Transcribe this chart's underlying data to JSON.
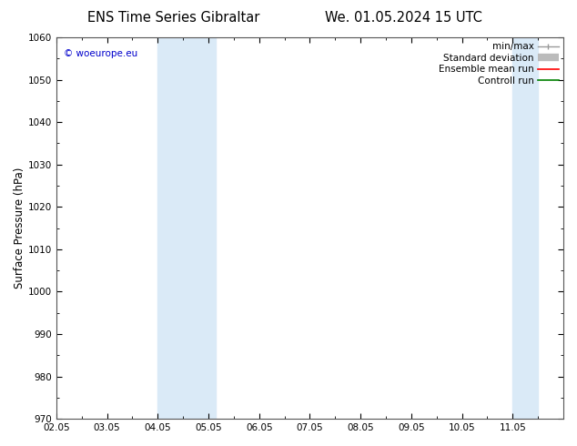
{
  "title_left": "ENS Time Series Gibraltar",
  "title_right": "We. 01.05.2024 15 UTC",
  "ylabel": "Surface Pressure (hPa)",
  "ylim": [
    970,
    1060
  ],
  "yticks": [
    970,
    980,
    990,
    1000,
    1010,
    1020,
    1030,
    1040,
    1050,
    1060
  ],
  "xlim": [
    0,
    10
  ],
  "xtick_labels": [
    "02.05",
    "03.05",
    "04.05",
    "05.05",
    "06.05",
    "07.05",
    "08.05",
    "09.05",
    "10.05",
    "11.05"
  ],
  "xtick_positions": [
    0,
    1,
    2,
    3,
    4,
    5,
    6,
    7,
    8,
    9
  ],
  "shaded_bands": [
    {
      "xmin": 2.0,
      "xmax": 3.0,
      "color": "#daeaf7"
    },
    {
      "xmin": 3.0,
      "xmax": 3.15,
      "color": "#daeaf7"
    },
    {
      "xmin": 9.0,
      "xmax": 9.15,
      "color": "#daeaf7"
    },
    {
      "xmin": 9.15,
      "xmax": 9.45,
      "color": "#daeaf7"
    }
  ],
  "copyright_text": "© woeurope.eu",
  "copyright_color": "#0000cc",
  "legend_entries": [
    {
      "label": "min/max",
      "color": "#999999",
      "lw": 1.0
    },
    {
      "label": "Standard deviation",
      "color": "#bbbbbb",
      "lw": 5
    },
    {
      "label": "Ensemble mean run",
      "color": "red",
      "lw": 1.0
    },
    {
      "label": "Controll run",
      "color": "green",
      "lw": 1.0
    }
  ],
  "bg_color": "#ffffff",
  "axis_bg_color": "#ffffff",
  "tick_label_size": 7.5,
  "axis_label_size": 8.5,
  "title_size": 10.5,
  "legend_fontsize": 7.5
}
